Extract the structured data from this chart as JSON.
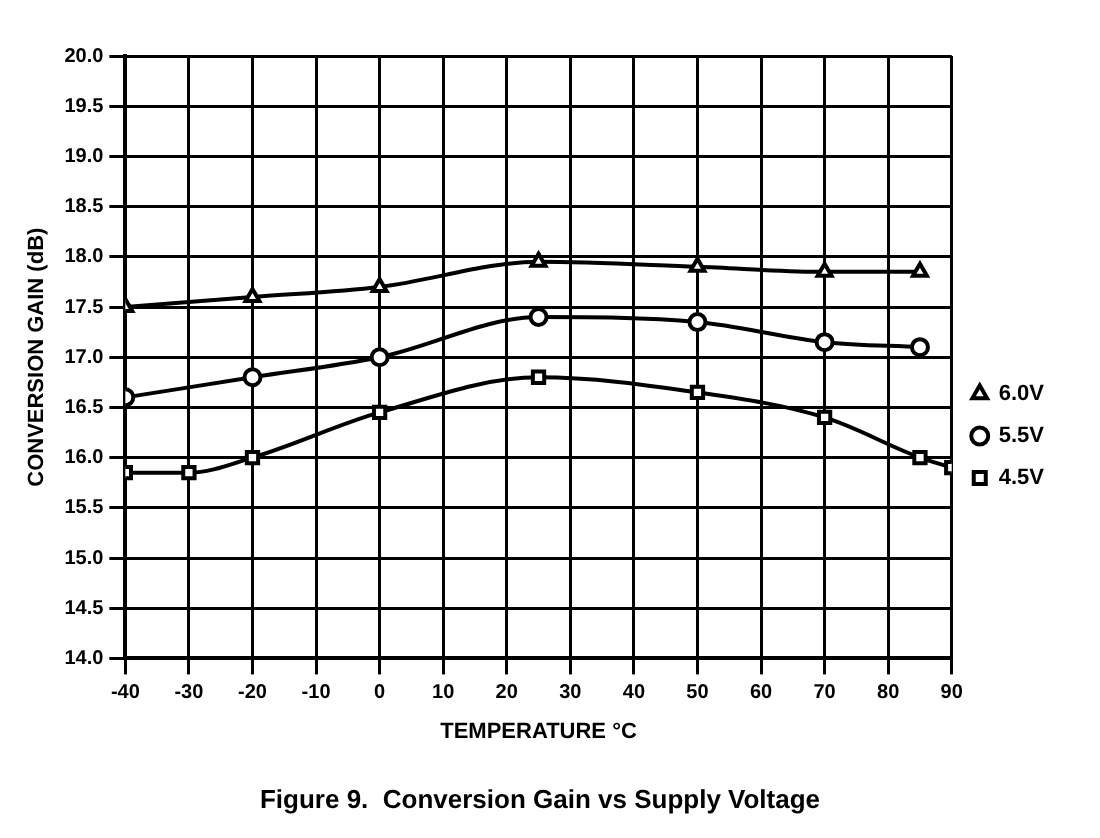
{
  "chart_data": {
    "type": "line",
    "title": "Figure 9.  Conversion Gain vs Supply Voltage",
    "xlabel": "TEMPERATURE °C",
    "ylabel": "CONVERSION GAIN (dB)",
    "series": [
      {
        "name": "6.0V",
        "color": "#000000",
        "marker": "triangle",
        "x": [
          -40,
          -20,
          0,
          25,
          50,
          70,
          85
        ],
        "values": [
          17.5,
          17.6,
          17.7,
          17.95,
          17.9,
          17.85,
          17.85
        ]
      },
      {
        "name": "5.5V",
        "color": "#000000",
        "marker": "circle",
        "x": [
          -40,
          -20,
          0,
          25,
          50,
          70,
          85
        ],
        "values": [
          16.6,
          16.8,
          17.0,
          17.4,
          17.35,
          17.15,
          17.1
        ]
      },
      {
        "name": "4.5V",
        "color": "#000000",
        "marker": "square",
        "x": [
          -40,
          -30,
          -20,
          0,
          25,
          50,
          70,
          85,
          90
        ],
        "values": [
          15.85,
          15.85,
          16.0,
          16.45,
          16.8,
          16.65,
          16.4,
          16.0,
          15.9
        ]
      }
    ],
    "xlim": [
      -40,
      90
    ],
    "xticks": [
      -40,
      -30,
      -20,
      -10,
      0,
      10,
      20,
      30,
      40,
      50,
      60,
      70,
      80,
      90
    ],
    "ylim": [
      14,
      20
    ],
    "yticks": [
      "14.0",
      14.5,
      "15.0",
      15.5,
      "16.0",
      16.5,
      "17.0",
      17.5,
      "18.0",
      18.5,
      "19.0",
      19.5,
      "20.0"
    ],
    "grid": true,
    "legend": "right",
    "line_style": "solid"
  }
}
